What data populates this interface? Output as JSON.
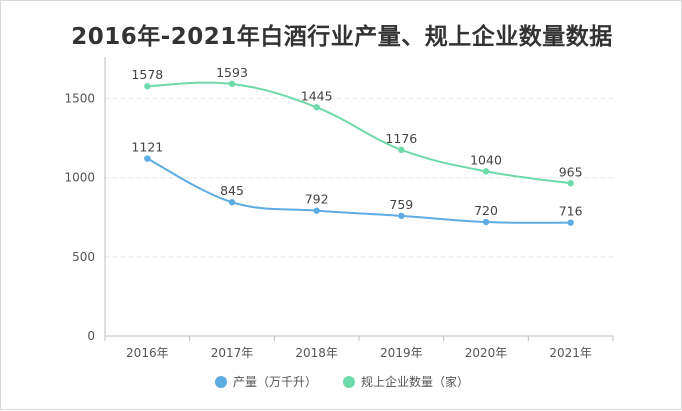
{
  "chart_data": {
    "type": "line",
    "title": "2016年-2021年白酒行业产量、规上企业数量数据",
    "categories": [
      "2016年",
      "2017年",
      "2018年",
      "2019年",
      "2020年",
      "2021年"
    ],
    "ylim": [
      0,
      1750
    ],
    "yticks": [
      0,
      500,
      1000,
      1500
    ],
    "grid": true,
    "legend_position": "bottom",
    "series": [
      {
        "name": "产量（万千升）",
        "values": [
          1121,
          845,
          792,
          759,
          720,
          716
        ],
        "color": "#5dade2"
      },
      {
        "name": "规上企业数量（家）",
        "values": [
          1578,
          1593,
          1445,
          1176,
          1040,
          965
        ],
        "color": "#6edaa9"
      }
    ]
  }
}
